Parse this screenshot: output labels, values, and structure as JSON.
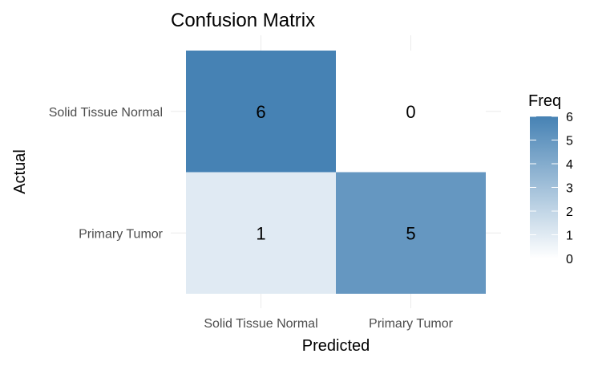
{
  "chart_data": {
    "type": "heatmap",
    "title": "Confusion Matrix",
    "xlabel": "Predicted",
    "ylabel": "Actual",
    "x_categories": [
      "Solid Tissue Normal",
      "Primary Tumor"
    ],
    "y_categories": [
      "Solid Tissue Normal",
      "Primary Tumor"
    ],
    "cells": [
      {
        "actual": "Solid Tissue Normal",
        "predicted": "Solid Tissue Normal",
        "value": 6,
        "label": "6"
      },
      {
        "actual": "Solid Tissue Normal",
        "predicted": "Primary Tumor",
        "value": 0,
        "label": "0"
      },
      {
        "actual": "Primary Tumor",
        "predicted": "Solid Tissue Normal",
        "value": 1,
        "label": "1"
      },
      {
        "actual": "Primary Tumor",
        "predicted": "Primary Tumor",
        "value": 5,
        "label": "5"
      }
    ],
    "legend": {
      "title": "Freq",
      "placement": "right",
      "min": 0,
      "max": 6,
      "ticks": [
        "0",
        "1",
        "2",
        "3",
        "4",
        "5",
        "6"
      ]
    },
    "colors": {
      "low": "#ffffff",
      "high": "#4682b4",
      "grid": "#ebebeb",
      "text": "#000000",
      "axis_text": "#4d4d4d"
    },
    "grid": true
  }
}
